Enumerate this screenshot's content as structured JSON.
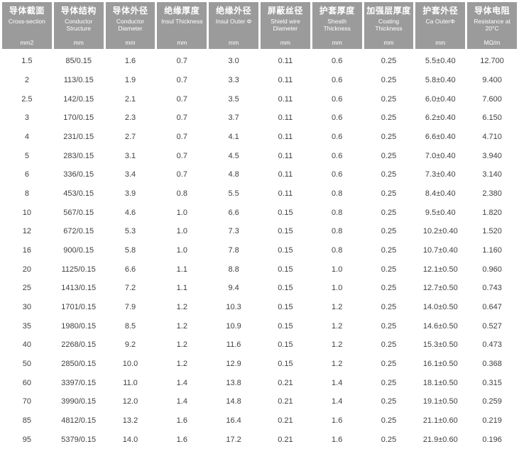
{
  "colors": {
    "header_bg": "#9b9b9b",
    "header_text": "#ffffff",
    "body_text": "#404040",
    "background": "#ffffff"
  },
  "table": {
    "columns": [
      {
        "title_zh": "导体截面",
        "subtitle_en": "Cross-section",
        "unit": "mm2"
      },
      {
        "title_zh": "导体结构",
        "subtitle_en": "Conductor Structure",
        "unit": "mm"
      },
      {
        "title_zh": "导体外径",
        "subtitle_en": "Conductor Diameter",
        "unit": "mm"
      },
      {
        "title_zh": "绝缘厚度",
        "subtitle_en": "Insul Thickness",
        "unit": "mm"
      },
      {
        "title_zh": "绝缘外径",
        "subtitle_en": "Insul Outer Φ",
        "unit": "mm"
      },
      {
        "title_zh": "屏蔽丝径",
        "subtitle_en": "Shield wire Diameter",
        "unit": "mm"
      },
      {
        "title_zh": "护套厚度",
        "subtitle_en": "Sheath Thickness",
        "unit": "mm"
      },
      {
        "title_zh": "加强层厚度",
        "subtitle_en": "Coating Thickness",
        "unit": "mm"
      },
      {
        "title_zh": "护套外径",
        "subtitle_en": "Ca OuterΦ",
        "unit": "mm"
      },
      {
        "title_zh": "导体电阻",
        "subtitle_en": "Resistance at 20°C",
        "unit": "MΩ/m"
      }
    ],
    "rows": [
      [
        "1.5",
        "85/0.15",
        "1.6",
        "0.7",
        "3.0",
        "0.11",
        "0.6",
        "0.25",
        "5.5±0.40",
        "12.700"
      ],
      [
        "2",
        "113/0.15",
        "1.9",
        "0.7",
        "3.3",
        "0.11",
        "0.6",
        "0.25",
        "5.8±0.40",
        "9.400"
      ],
      [
        "2.5",
        "142/0.15",
        "2.1",
        "0.7",
        "3.5",
        "0.11",
        "0.6",
        "0.25",
        "6.0±0.40",
        "7.600"
      ],
      [
        "3",
        "170/0.15",
        "2.3",
        "0.7",
        "3.7",
        "0.11",
        "0.6",
        "0.25",
        "6.2±0.40",
        "6.150"
      ],
      [
        "4",
        "231/0.15",
        "2.7",
        "0.7",
        "4.1",
        "0.11",
        "0.6",
        "0.25",
        "6.6±0.40",
        "4.710"
      ],
      [
        "5",
        "283/0.15",
        "3.1",
        "0.7",
        "4.5",
        "0.11",
        "0.6",
        "0.25",
        "7.0±0.40",
        "3.940"
      ],
      [
        "6",
        "336/0.15",
        "3.4",
        "0.7",
        "4.8",
        "0.11",
        "0.6",
        "0.25",
        "7.3±0.40",
        "3.140"
      ],
      [
        "8",
        "453/0.15",
        "3.9",
        "0.8",
        "5.5",
        "0.11",
        "0.8",
        "0.25",
        "8.4±0.40",
        "2.380"
      ],
      [
        "10",
        "567/0.15",
        "4.6",
        "1.0",
        "6.6",
        "0.15",
        "0.8",
        "0.25",
        "9.5±0.40",
        "1.820"
      ],
      [
        "12",
        "672/0.15",
        "5.3",
        "1.0",
        "7.3",
        "0.15",
        "0.8",
        "0.25",
        "10.2±0.40",
        "1.520"
      ],
      [
        "16",
        "900/0.15",
        "5.8",
        "1.0",
        "7.8",
        "0.15",
        "0.8",
        "0.25",
        "10.7±0.40",
        "1.160"
      ],
      [
        "20",
        "1125/0.15",
        "6.6",
        "1.1",
        "8.8",
        "0.15",
        "1.0",
        "0.25",
        "12.1±0.50",
        "0.960"
      ],
      [
        "25",
        "1413/0.15",
        "7.2",
        "1.1",
        "9.4",
        "0.15",
        "1.0",
        "0.25",
        "12.7±0.50",
        "0.743"
      ],
      [
        "30",
        "1701/0.15",
        "7.9",
        "1.2",
        "10.3",
        "0.15",
        "1.2",
        "0.25",
        "14.0±0.50",
        "0.647"
      ],
      [
        "35",
        "1980/0.15",
        "8.5",
        "1.2",
        "10.9",
        "0.15",
        "1.2",
        "0.25",
        "14.6±0.50",
        "0.527"
      ],
      [
        "40",
        "2268/0.15",
        "9.2",
        "1.2",
        "11.6",
        "0.15",
        "1.2",
        "0.25",
        "15.3±0.50",
        "0.473"
      ],
      [
        "50",
        "2850/0.15",
        "10.0",
        "1.2",
        "12.9",
        "0.15",
        "1.2",
        "0.25",
        "16.1±0.50",
        "0.368"
      ],
      [
        "60",
        "3397/0.15",
        "11.0",
        "1.4",
        "13.8",
        "0.21",
        "1.4",
        "0.25",
        "18.1±0.50",
        "0.315"
      ],
      [
        "70",
        "3990/0.15",
        "12.0",
        "1.4",
        "14.8",
        "0.21",
        "1.4",
        "0.25",
        "19.1±0.50",
        "0.259"
      ],
      [
        "85",
        "4812/0.15",
        "13.2",
        "1.6",
        "16.4",
        "0.21",
        "1.6",
        "0.25",
        "21.1±0.60",
        "0.219"
      ],
      [
        "95",
        "5379/0.15",
        "14.0",
        "1.6",
        "17.2",
        "0.21",
        "1.6",
        "0.25",
        "21.9±0.60",
        "0.196"
      ]
    ]
  }
}
